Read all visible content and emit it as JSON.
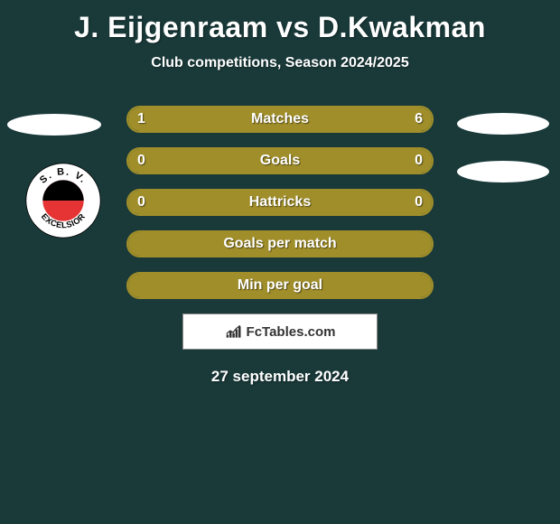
{
  "title": "J. Eijgenraam vs D.Kwakman",
  "subtitle": "Club competitions, Season 2024/2025",
  "date": "27 september 2024",
  "attribution": "FcTables.com",
  "colors": {
    "background": "#1a3a3a",
    "bar_fill": "#a08e2a",
    "bar_border": "#a08e2a",
    "text": "#ffffff"
  },
  "club_badge": {
    "name": "S.B.V. EXCELSIOR",
    "outer": "#ffffff",
    "top_half": "#000000",
    "bottom_half": "#e63333",
    "text_color": "#000000"
  },
  "bars": [
    {
      "label": "Matches",
      "left_val": "1",
      "right_val": "6",
      "left_pct": 14,
      "right_pct": 86,
      "show_vals": true
    },
    {
      "label": "Goals",
      "left_val": "0",
      "right_val": "0",
      "left_pct": 0,
      "right_pct": 0,
      "show_vals": true,
      "full": true
    },
    {
      "label": "Hattricks",
      "left_val": "0",
      "right_val": "0",
      "left_pct": 0,
      "right_pct": 0,
      "show_vals": true,
      "full": true
    },
    {
      "label": "Goals per match",
      "left_val": "",
      "right_val": "",
      "left_pct": 0,
      "right_pct": 0,
      "show_vals": false,
      "full": true
    },
    {
      "label": "Min per goal",
      "left_val": "",
      "right_val": "",
      "left_pct": 0,
      "right_pct": 0,
      "show_vals": false,
      "full": true
    }
  ]
}
